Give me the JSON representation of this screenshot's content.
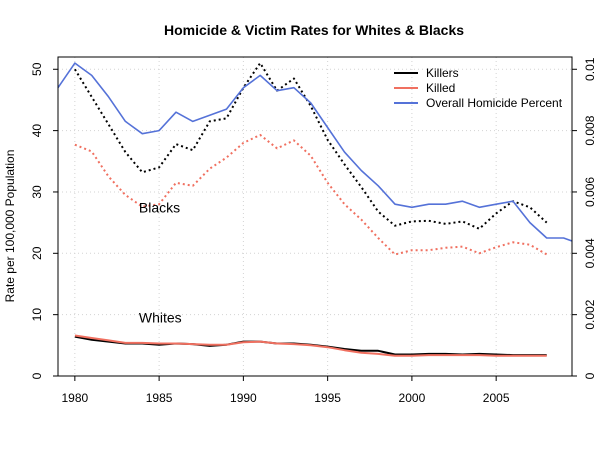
{
  "chart_data": {
    "type": "line",
    "title": "Homicide & Victim Rates for Whites & Blacks",
    "ylabel": "Rate per 100,000 Population",
    "xlabel": "",
    "xlim": [
      1979,
      2009.5
    ],
    "ylim": [
      0,
      52
    ],
    "y2lim": [
      0,
      0.0104
    ],
    "x_ticks": [
      1980,
      1985,
      1990,
      1995,
      2000,
      2005
    ],
    "y_ticks": [
      0,
      10,
      20,
      30,
      40,
      50
    ],
    "y2_ticks": [
      0,
      0.002,
      0.004,
      0.006,
      0.008,
      0.01
    ],
    "y2_tick_labels": [
      "0",
      "0.002",
      "0.004",
      "0.006",
      "0.008",
      "0.01"
    ],
    "grid": true,
    "legend_position": "top-right",
    "legend": [
      {
        "name": "Killers",
        "color": "#000000"
      },
      {
        "name": "Killed",
        "color": "#f07060"
      },
      {
        "name": "Overall Homicide Percent",
        "color": "#5572d8"
      }
    ],
    "annotations": [
      {
        "text": "Blacks",
        "x": 1983.8,
        "y": 27.5
      },
      {
        "text": "Whites",
        "x": 1983.8,
        "y": 9.5
      }
    ],
    "x": [
      1980,
      1981,
      1982,
      1983,
      1984,
      1985,
      1986,
      1987,
      1988,
      1989,
      1990,
      1991,
      1992,
      1993,
      1994,
      1995,
      1996,
      1997,
      1998,
      1999,
      2000,
      2001,
      2002,
      2003,
      2004,
      2005,
      2006,
      2007,
      2008
    ],
    "series": [
      {
        "name": "Killers",
        "group": "Blacks",
        "color": "#000000",
        "dash": "dotted",
        "values": [
          50.0,
          45.5,
          41.0,
          36.5,
          33.2,
          34.0,
          37.8,
          36.8,
          41.5,
          42.0,
          47.0,
          51.0,
          46.5,
          48.5,
          44.0,
          38.5,
          34.5,
          30.8,
          26.8,
          24.5,
          25.2,
          25.3,
          24.8,
          25.2,
          24.0,
          26.5,
          28.5,
          27.5,
          25.0
        ]
      },
      {
        "name": "Killed",
        "group": "Blacks",
        "color": "#f07060",
        "dash": "dotted",
        "values": [
          37.7,
          36.6,
          32.5,
          29.5,
          27.6,
          28.0,
          31.5,
          31.0,
          33.8,
          35.6,
          38.0,
          39.3,
          37.1,
          38.4,
          35.9,
          31.5,
          28.0,
          25.5,
          22.5,
          19.8,
          20.5,
          20.5,
          20.9,
          21.1,
          20.0,
          21.0,
          21.8,
          21.4,
          19.8
        ]
      },
      {
        "name": "Killers",
        "group": "Whites",
        "color": "#000000",
        "dash": "solid",
        "values": [
          6.4,
          5.9,
          5.6,
          5.3,
          5.3,
          5.1,
          5.3,
          5.2,
          4.9,
          5.1,
          5.6,
          5.6,
          5.3,
          5.3,
          5.1,
          4.8,
          4.4,
          4.1,
          4.1,
          3.5,
          3.5,
          3.6,
          3.6,
          3.5,
          3.6,
          3.5,
          3.4,
          3.4,
          3.4
        ]
      },
      {
        "name": "Killed",
        "group": "Whites",
        "color": "#f07060",
        "dash": "solid",
        "values": [
          6.6,
          6.2,
          5.8,
          5.4,
          5.4,
          5.3,
          5.3,
          5.2,
          5.1,
          5.1,
          5.5,
          5.6,
          5.3,
          5.2,
          5.0,
          4.7,
          4.2,
          3.8,
          3.6,
          3.3,
          3.3,
          3.4,
          3.4,
          3.4,
          3.4,
          3.3,
          3.3,
          3.3,
          3.3
        ]
      },
      {
        "name": "Overall Homicide Percent",
        "color": "#5572d8",
        "dash": "solid",
        "axis": "right",
        "x": [
          1979,
          1980,
          1981,
          1982,
          1983,
          1984,
          1985,
          1986,
          1987,
          1988,
          1989,
          1990,
          1991,
          1992,
          1993,
          1994,
          1995,
          1996,
          1997,
          1998,
          1999,
          2000,
          2001,
          2002,
          2003,
          2004,
          2005,
          2006,
          2007,
          2008,
          2009,
          2009.5
        ],
        "values": [
          0.0094,
          0.0102,
          0.0098,
          0.0091,
          0.0083,
          0.0079,
          0.008,
          0.0086,
          0.0083,
          0.0085,
          0.0087,
          0.0094,
          0.0098,
          0.0093,
          0.0094,
          0.0089,
          0.0081,
          0.0073,
          0.0067,
          0.0062,
          0.0056,
          0.0055,
          0.0056,
          0.0056,
          0.0057,
          0.0055,
          0.0056,
          0.0057,
          0.005,
          0.0045,
          0.0045,
          0.0044
        ]
      }
    ]
  }
}
